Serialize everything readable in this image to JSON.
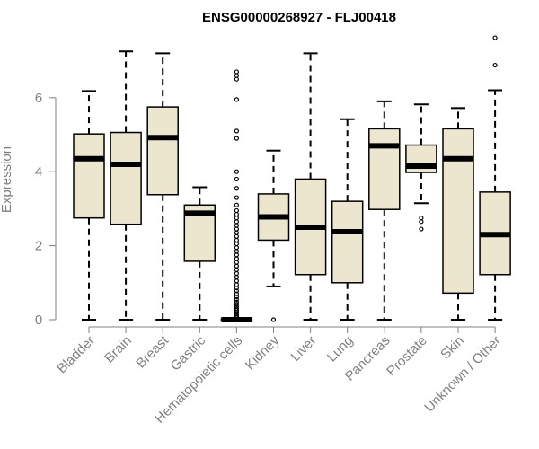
{
  "chart_data": {
    "type": "boxplot",
    "title": "ENSG00000268927 - FLJ00418",
    "xlabel": "",
    "ylabel": "Expression",
    "ylim": [
      0,
      7.8
    ],
    "yticks": [
      0,
      2,
      4,
      6
    ],
    "box_fill": "#ede6cf",
    "stroke": "#000000",
    "axis_color": "#808080",
    "categories": [
      "Bladder",
      "Brain",
      "Breast",
      "Gastric",
      "Hematopoietic cells",
      "Kidney",
      "Liver",
      "Lung",
      "Pancreas",
      "Prostate",
      "Skin",
      "Unknown / Other"
    ],
    "boxes": [
      {
        "name": "Bladder",
        "whisker_low": 0.0,
        "q1": 2.75,
        "median": 4.35,
        "q3": 5.02,
        "whisker_high": 6.18,
        "outliers": []
      },
      {
        "name": "Brain",
        "whisker_low": 0.0,
        "q1": 2.58,
        "median": 4.2,
        "q3": 5.06,
        "whisker_high": 7.25,
        "outliers": []
      },
      {
        "name": "Breast",
        "whisker_low": 0.0,
        "q1": 3.38,
        "median": 4.92,
        "q3": 5.75,
        "whisker_high": 7.2,
        "outliers": []
      },
      {
        "name": "Gastric",
        "whisker_low": 0.0,
        "q1": 1.58,
        "median": 2.88,
        "q3": 3.1,
        "whisker_high": 3.58,
        "outliers": []
      },
      {
        "name": "Hematopoietic cells",
        "whisker_low": 0.0,
        "q1": 0.0,
        "median": 0.0,
        "q3": 0.02,
        "whisker_high": 0.05,
        "outliers": [
          0.08,
          0.12,
          0.16,
          0.2,
          0.25,
          0.3,
          0.36,
          0.42,
          0.48,
          0.55,
          0.62,
          0.7,
          0.78,
          0.86,
          0.95,
          1.05,
          1.15,
          1.25,
          1.35,
          1.45,
          1.55,
          1.65,
          1.75,
          1.85,
          1.95,
          2.05,
          2.15,
          2.25,
          2.35,
          2.45,
          2.55,
          2.65,
          2.75,
          2.85,
          2.95,
          3.1,
          3.3,
          3.55,
          3.8,
          4.0,
          4.9,
          5.1,
          5.95,
          6.5,
          6.6,
          6.7
        ]
      },
      {
        "name": "Kidney",
        "whisker_low": 0.9,
        "q1": 2.15,
        "median": 2.78,
        "q3": 3.4,
        "whisker_high": 4.57,
        "outliers": [
          0.0
        ]
      },
      {
        "name": "Liver",
        "whisker_low": 0.0,
        "q1": 1.22,
        "median": 2.5,
        "q3": 3.8,
        "whisker_high": 7.2,
        "outliers": []
      },
      {
        "name": "Lung",
        "whisker_low": 0.0,
        "q1": 1.0,
        "median": 2.38,
        "q3": 3.2,
        "whisker_high": 5.42,
        "outliers": []
      },
      {
        "name": "Pancreas",
        "whisker_low": 0.0,
        "q1": 2.98,
        "median": 4.7,
        "q3": 5.16,
        "whisker_high": 5.9,
        "outliers": []
      },
      {
        "name": "Prostate",
        "whisker_low": 3.15,
        "q1": 3.98,
        "median": 4.15,
        "q3": 4.72,
        "whisker_high": 5.82,
        "outliers": [
          2.45,
          2.65,
          2.75
        ]
      },
      {
        "name": "Skin",
        "whisker_low": 0.0,
        "q1": 0.72,
        "median": 4.35,
        "q3": 5.16,
        "whisker_high": 5.72,
        "outliers": []
      },
      {
        "name": "Unknown / Other",
        "whisker_low": 0.0,
        "q1": 1.22,
        "median": 2.3,
        "q3": 3.45,
        "whisker_high": 6.2,
        "outliers": [
          6.88,
          7.62
        ]
      }
    ]
  }
}
